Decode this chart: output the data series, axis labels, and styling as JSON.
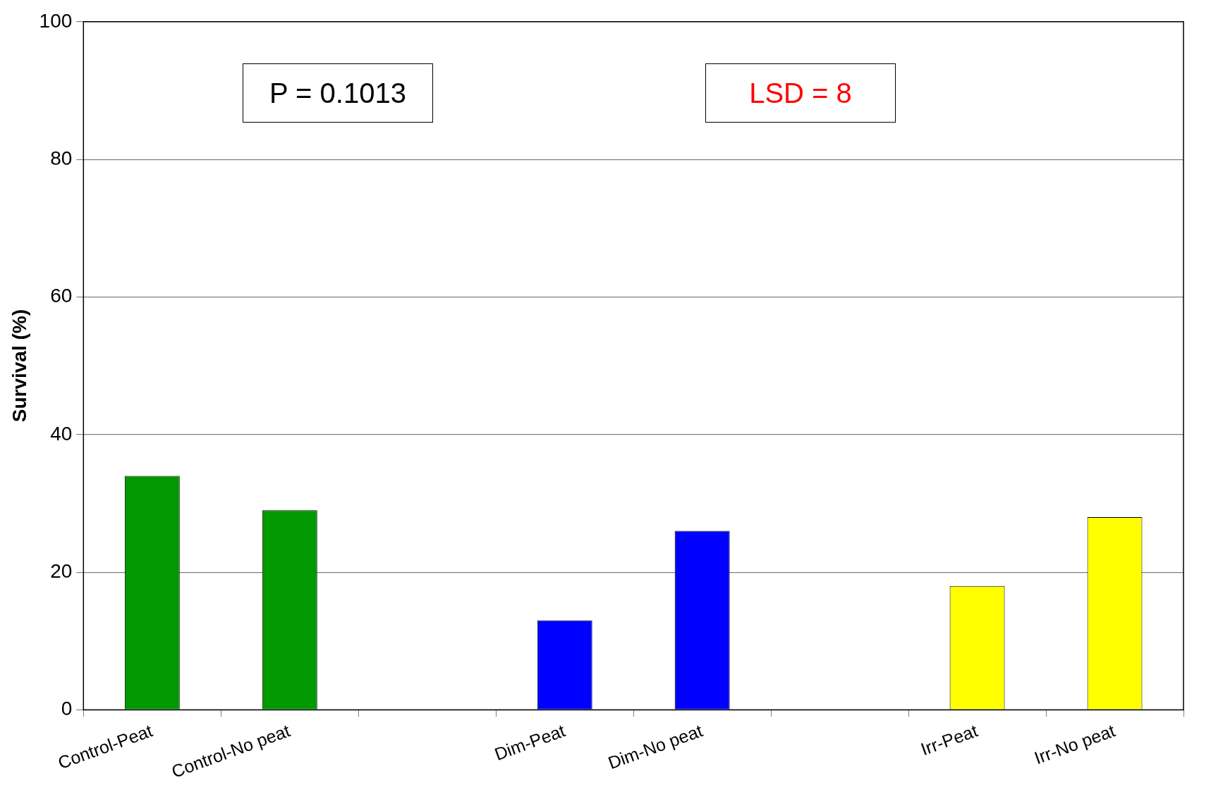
{
  "chart_data": {
    "type": "bar",
    "ylabel": "Survival (%)",
    "categories": [
      "Control-Peat",
      "Control-No peat",
      null,
      "Dim-Peat",
      "Dim-No peat",
      null,
      "Irr-Peat",
      "Irr-No peat"
    ],
    "values": [
      34,
      29,
      null,
      13,
      26,
      null,
      18,
      28
    ],
    "colors": [
      "#009900",
      "#009900",
      null,
      "#0000ff",
      "#0000ff",
      null,
      "#ffff00",
      "#ffff00"
    ],
    "ylim": [
      0,
      100
    ],
    "yticks": [
      0,
      20,
      40,
      60,
      80,
      100
    ],
    "grid": "y",
    "legend": false,
    "annotations": [
      "P = 0.1013",
      "LSD = 8"
    ]
  }
}
